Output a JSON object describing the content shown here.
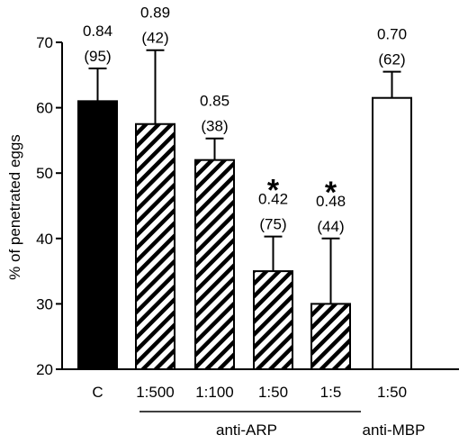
{
  "chart_data": {
    "type": "bar",
    "ylabel": "% of penetrated eggs",
    "ylim": [
      20,
      70
    ],
    "yticks": [
      20,
      30,
      40,
      50,
      60,
      70
    ],
    "categories": [
      "C",
      "1:500",
      "1:100",
      "1:50",
      "1:5",
      "1:50"
    ],
    "values": [
      61,
      57.5,
      52,
      35,
      30,
      61.5
    ],
    "errors": [
      5,
      11.3,
      3.3,
      5.3,
      10,
      4
    ],
    "fills": [
      "solid",
      "hatched",
      "hatched",
      "hatched",
      "hatched",
      "open"
    ],
    "annotations": [
      {
        "line1": "0.84",
        "line2": "(95)",
        "star": false
      },
      {
        "line1": "0.89",
        "line2": "(42)",
        "star": false
      },
      {
        "line1": "0.85",
        "line2": "(38)",
        "star": false
      },
      {
        "line1": "0.42",
        "line2": "(75)",
        "star": true
      },
      {
        "line1": "0.48",
        "line2": "(44)",
        "star": true
      },
      {
        "line1": "0.70",
        "line2": "(62)",
        "star": false
      }
    ],
    "star_symbol": "*",
    "groups": [
      {
        "label": "anti-ARP",
        "from": 1,
        "to": 4,
        "underline": true
      },
      {
        "label": "anti-MBP",
        "from": 5,
        "to": 5,
        "underline": false
      }
    ],
    "colors": {
      "solid": "#000000",
      "hatch": "#000000",
      "open": "#ffffff",
      "axis": "#000000"
    }
  }
}
